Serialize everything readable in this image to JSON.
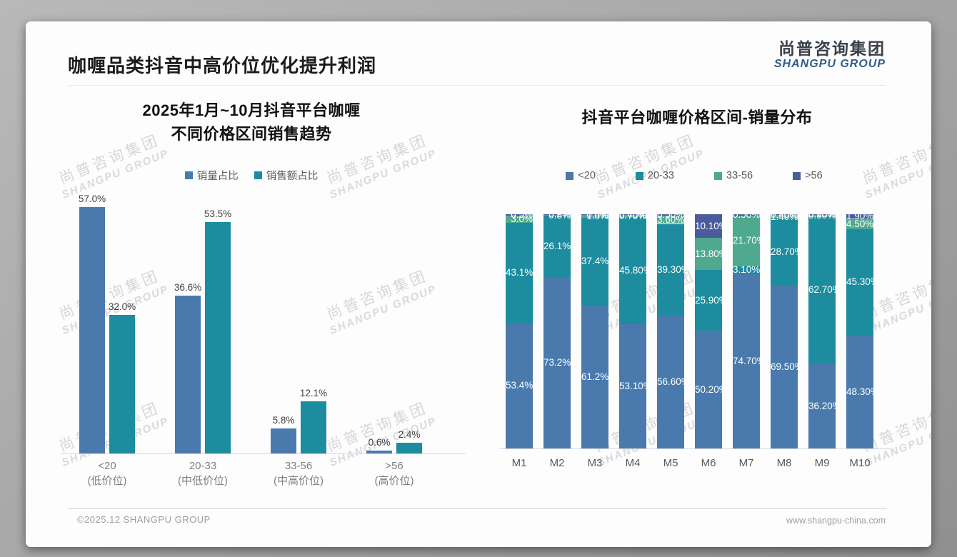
{
  "slide": {
    "title": "咖喱品类抖音中高价位优化提升利润"
  },
  "logo": {
    "cn": "尚普咨询集团",
    "en": "SHANGPU GROUP"
  },
  "watermark": {
    "cn": "尚普咨询集团",
    "en": "SHANGPU GROUP"
  },
  "footer": {
    "left": "©2025.12 SHANGPU GROUP",
    "right": "www.shangpu-china.com"
  },
  "colors": {
    "blue": "#4a7aad",
    "teal": "#1c8c9e",
    "green": "#4fa98e",
    "slate": "#4b5c9e",
    "axis": "#d9d9d9"
  },
  "chart_data": [
    {
      "type": "bar",
      "title": "2025年1月~10月抖音平台咖喱 不同价格区间销售趋势",
      "title_lines": [
        "2025年1月~10月抖音平台咖喱",
        "不同价格区间销售趋势"
      ],
      "legend": [
        "销量占比",
        "销售额占比"
      ],
      "categories": [
        [
          "<20",
          "(低价位)"
        ],
        [
          "20-33",
          "(中低价位)"
        ],
        [
          "33-56",
          "(中高价位)"
        ],
        [
          ">56",
          "(高价位)"
        ]
      ],
      "series": [
        {
          "name": "销量占比",
          "color_key": "blue",
          "values": [
            57.0,
            36.6,
            5.8,
            0.6
          ],
          "labels": [
            "57.0%",
            "36.6%",
            "5.8%",
            "0.6%"
          ]
        },
        {
          "name": "销售额占比",
          "color_key": "teal",
          "values": [
            32.0,
            53.5,
            12.1,
            2.4
          ],
          "labels": [
            "32.0%",
            "53.5%",
            "12.1%",
            "2.4%"
          ]
        }
      ],
      "ylim": [
        0,
        60
      ],
      "grid": false,
      "legend_position": "top"
    },
    {
      "type": "stacked-bar",
      "title": "抖音平台咖喱价格区间-销量分布",
      "legend": [
        "<20",
        "20-33",
        "33-56",
        ">56"
      ],
      "categories": [
        "M1",
        "M2",
        "M3",
        "M4",
        "M5",
        "M6",
        "M7",
        "M8",
        "M9",
        "M10"
      ],
      "series": [
        {
          "name": "<20",
          "color_key": "blue",
          "values": [
            53.4,
            73.2,
            61.2,
            53.1,
            56.6,
            50.2,
            74.7,
            69.5,
            36.2,
            48.3
          ],
          "labels": [
            "53.4%",
            "73.2%",
            "61.2%",
            "53.10%",
            "56.60%",
            "50.20%",
            "74.70%",
            "69.50%",
            "36.20%",
            "48.30%"
          ]
        },
        {
          "name": "20-33",
          "color_key": "teal",
          "values": [
            43.1,
            26.1,
            37.4,
            45.8,
            39.3,
            25.9,
            3.1,
            28.7,
            62.7,
            45.3
          ],
          "labels": [
            "43.1%",
            "26.1%",
            "37.4%",
            "45.80%",
            "39.30%",
            "25.90%",
            "3.10%",
            "28.70%",
            "62.70%",
            "45.30%"
          ]
        },
        {
          "name": "33-56",
          "color_key": "green",
          "values": [
            3.0,
            0.5,
            1.0,
            0.7,
            3.6,
            13.8,
            21.7,
            1.4,
            0.9,
            4.5
          ],
          "labels": [
            "3.0%",
            "0.5%",
            "1.0%",
            "0.70%",
            "3.60%",
            "13.80%",
            "21.70%",
            "1.40%",
            "0.90%",
            "4.50%"
          ]
        },
        {
          "name": ">56",
          "color_key": "slate",
          "values": [
            0.5,
            0.2,
            0.4,
            0.4,
            0.5,
            10.1,
            0.5,
            0.4,
            0.2,
            1.9
          ],
          "labels": [
            "0.5%",
            "0.2%",
            "0.4%",
            "0.40%",
            "0.50%",
            "10.10%",
            "0.50%",
            "0.40%",
            "0.20%",
            "1.90%"
          ]
        }
      ],
      "ylim": [
        0,
        100
      ],
      "grid": false,
      "legend_position": "top"
    }
  ]
}
